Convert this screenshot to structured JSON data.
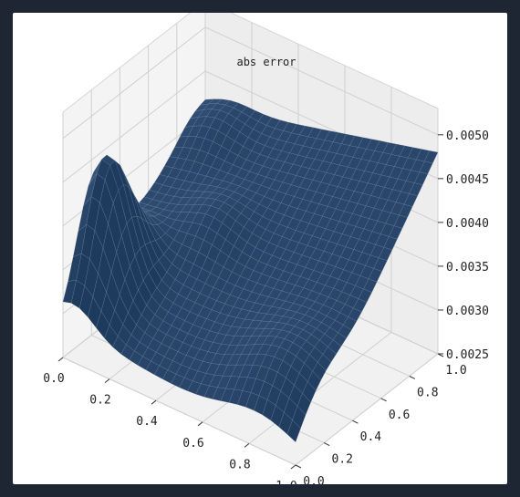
{
  "chart_data": {
    "type": "surface3d",
    "title": "abs error",
    "xlabel": "",
    "ylabel": "",
    "zlabel": "",
    "xlim": [
      0.0,
      1.0
    ],
    "ylim": [
      0.0,
      1.0
    ],
    "zlim": [
      0.0025,
      0.0053
    ],
    "x_ticks": [
      "0.0",
      "0.2",
      "0.4",
      "0.6",
      "0.8",
      "1.0"
    ],
    "y_ticks": [
      "0.0",
      "0.2",
      "0.4",
      "0.6",
      "0.8",
      "1.0"
    ],
    "z_ticks": [
      "0.0025",
      "0.0030",
      "0.0035",
      "0.0040",
      "0.0045",
      "0.0050"
    ],
    "corner_values": {
      "x0_y0": 0.0029,
      "x1_y0": 0.0026,
      "x0_y1": 0.0041,
      "x1_y1": 0.0048
    },
    "surface_color": "#2b4a70",
    "grid": true
  }
}
